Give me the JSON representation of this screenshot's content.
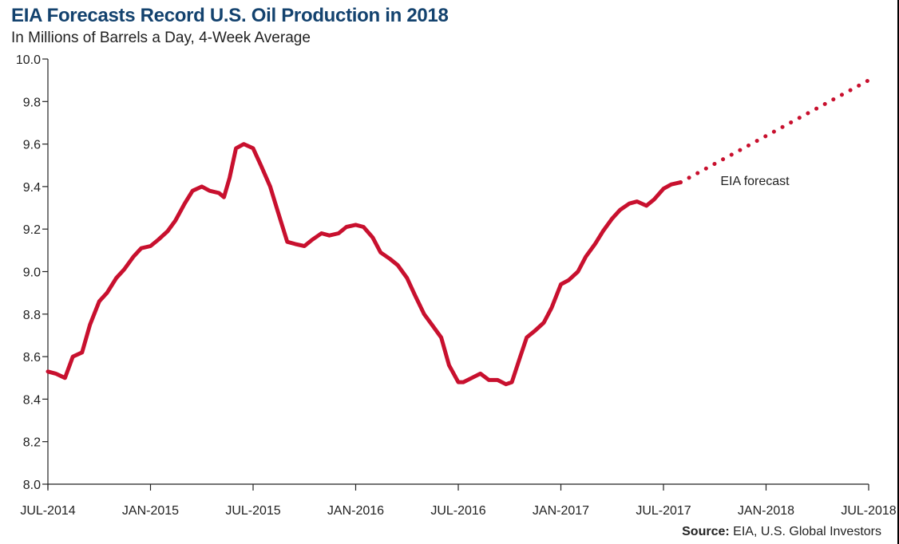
{
  "chart_data": {
    "type": "line",
    "title": "EIA Forecasts Record U.S. Oil Production in 2018",
    "subtitle": "In Millions of Barrels a Day, 4-Week Average",
    "xlabel": "",
    "ylabel": "",
    "ylim": [
      8.0,
      10.0
    ],
    "xlim": [
      "2014-07",
      "2018-07"
    ],
    "y_ticks": [
      "8.0",
      "8.2",
      "8.4",
      "8.6",
      "8.8",
      "9.0",
      "9.2",
      "9.4",
      "9.6",
      "9.8",
      "10.0"
    ],
    "x_ticks": [
      {
        "label": "JUL-2014",
        "x": "2014-07"
      },
      {
        "label": "JAN-2015",
        "x": "2015-01"
      },
      {
        "label": "JUL-2015",
        "x": "2015-07"
      },
      {
        "label": "JAN-2016",
        "x": "2016-01"
      },
      {
        "label": "JUL-2016",
        "x": "2016-07"
      },
      {
        "label": "JAN-2017",
        "x": "2017-01"
      },
      {
        "label": "JUL-2017",
        "x": "2017-07"
      },
      {
        "label": "JAN-2018",
        "x": "2018-01"
      },
      {
        "label": "JUL-2018",
        "x": "2018-07"
      }
    ],
    "grid": false,
    "series": [
      {
        "style": "solid",
        "color": "#c8102e",
        "points": [
          [
            "2014-07-01",
            8.53
          ],
          [
            "2014-07-15",
            8.52
          ],
          [
            "2014-08-01",
            8.5
          ],
          [
            "2014-08-15",
            8.6
          ],
          [
            "2014-09-01",
            8.62
          ],
          [
            "2014-09-15",
            8.75
          ],
          [
            "2014-10-01",
            8.86
          ],
          [
            "2014-10-15",
            8.9
          ],
          [
            "2014-11-01",
            8.97
          ],
          [
            "2014-11-15",
            9.01
          ],
          [
            "2014-12-01",
            9.07
          ],
          [
            "2014-12-15",
            9.11
          ],
          [
            "2015-01-01",
            9.12
          ],
          [
            "2015-01-15",
            9.15
          ],
          [
            "2015-02-01",
            9.19
          ],
          [
            "2015-02-15",
            9.24
          ],
          [
            "2015-03-01",
            9.32
          ],
          [
            "2015-03-15",
            9.38
          ],
          [
            "2015-04-01",
            9.4
          ],
          [
            "2015-04-15",
            9.38
          ],
          [
            "2015-05-01",
            9.37
          ],
          [
            "2015-05-10",
            9.35
          ],
          [
            "2015-05-20",
            9.44
          ],
          [
            "2015-06-01",
            9.58
          ],
          [
            "2015-06-15",
            9.6
          ],
          [
            "2015-07-01",
            9.58
          ],
          [
            "2015-07-15",
            9.5
          ],
          [
            "2015-08-01",
            9.4
          ],
          [
            "2015-08-15",
            9.28
          ],
          [
            "2015-09-01",
            9.14
          ],
          [
            "2015-09-15",
            9.13
          ],
          [
            "2015-10-01",
            9.12
          ],
          [
            "2015-10-15",
            9.15
          ],
          [
            "2015-11-01",
            9.18
          ],
          [
            "2015-11-15",
            9.17
          ],
          [
            "2015-12-01",
            9.18
          ],
          [
            "2015-12-15",
            9.21
          ],
          [
            "2016-01-01",
            9.22
          ],
          [
            "2016-01-15",
            9.21
          ],
          [
            "2016-02-01",
            9.16
          ],
          [
            "2016-02-15",
            9.09
          ],
          [
            "2016-03-01",
            9.06
          ],
          [
            "2016-03-15",
            9.03
          ],
          [
            "2016-04-01",
            8.97
          ],
          [
            "2016-04-15",
            8.89
          ],
          [
            "2016-05-01",
            8.8
          ],
          [
            "2016-05-15",
            8.75
          ],
          [
            "2016-06-01",
            8.69
          ],
          [
            "2016-06-15",
            8.56
          ],
          [
            "2016-07-01",
            8.48
          ],
          [
            "2016-07-10",
            8.48
          ],
          [
            "2016-07-25",
            8.5
          ],
          [
            "2016-08-10",
            8.52
          ],
          [
            "2016-08-25",
            8.49
          ],
          [
            "2016-09-10",
            8.49
          ],
          [
            "2016-09-25",
            8.47
          ],
          [
            "2016-10-05",
            8.48
          ],
          [
            "2016-10-20",
            8.6
          ],
          [
            "2016-11-01",
            8.69
          ],
          [
            "2016-11-15",
            8.72
          ],
          [
            "2016-12-01",
            8.76
          ],
          [
            "2016-12-15",
            8.83
          ],
          [
            "2017-01-01",
            8.94
          ],
          [
            "2017-01-15",
            8.96
          ],
          [
            "2017-02-01",
            9.0
          ],
          [
            "2017-02-15",
            9.07
          ],
          [
            "2017-03-01",
            9.13
          ],
          [
            "2017-03-15",
            9.19
          ],
          [
            "2017-04-01",
            9.25
          ],
          [
            "2017-04-15",
            9.29
          ],
          [
            "2017-05-01",
            9.32
          ],
          [
            "2017-05-15",
            9.33
          ],
          [
            "2017-06-01",
            9.31
          ],
          [
            "2017-06-15",
            9.34
          ],
          [
            "2017-07-01",
            9.39
          ],
          [
            "2017-07-15",
            9.41
          ],
          [
            "2017-08-01",
            9.42
          ]
        ]
      },
      {
        "style": "dotted",
        "color": "#c8102e",
        "points": [
          [
            "2017-08-01",
            9.42
          ],
          [
            "2018-07-01",
            9.9
          ]
        ]
      }
    ],
    "annotations": [
      {
        "text": "EIA forecast",
        "x": "2018-01",
        "y": 9.43
      }
    ],
    "source": {
      "label": "Source:",
      "text": " EIA, U.S. Global Investors"
    }
  }
}
